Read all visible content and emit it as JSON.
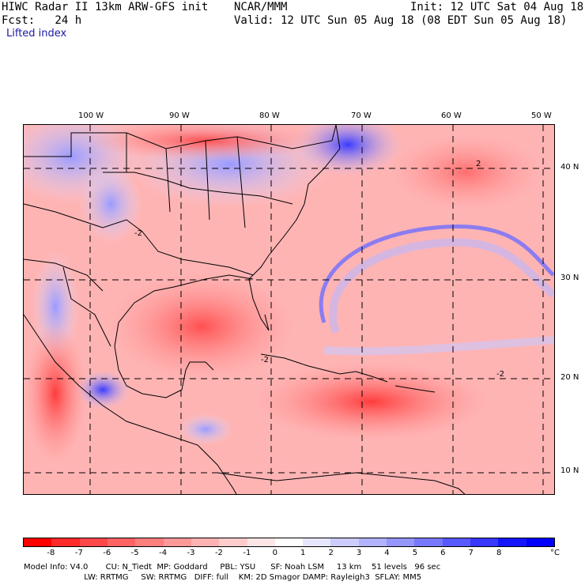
{
  "header": {
    "model_title": "HIWC Radar II 13km ARW-GFS init",
    "org": "NCAR/MMM",
    "init": "Init: 12 UTC Sat 04 Aug 18",
    "fcst": "Fcst:   24 h",
    "valid": "Valid: 12 UTC Sun 05 Aug 18 (08 EDT Sun 05 Aug 18)",
    "field": "Lifted index"
  },
  "map": {
    "lon_labels": [
      "100 W",
      "90 W",
      "80 W",
      "70 W",
      "60 W",
      "50 W"
    ],
    "lat_labels": [
      "40 N",
      "30 N",
      "20 N",
      "10 N"
    ],
    "contour_labels": [
      "2",
      "-2",
      "-2",
      "-2"
    ]
  },
  "colorbar": {
    "unit": "°C",
    "ticks": [
      "-8",
      "-7",
      "-6",
      "-5",
      "-4",
      "-3",
      "-2",
      "-1",
      "0",
      "1",
      "2",
      "3",
      "4",
      "5",
      "6",
      "7",
      "8"
    ],
    "colors": [
      "#ff0000",
      "#ff2a2a",
      "#ff4848",
      "#ff6464",
      "#ff7e7e",
      "#ff9898",
      "#ffb2b2",
      "#ffcccc",
      "#ffe6e6",
      "#ffffff",
      "#e6e6ff",
      "#ccccff",
      "#b2b2ff",
      "#9696ff",
      "#7878ff",
      "#5858ff",
      "#3838ff",
      "#1414ff",
      "#0000ff"
    ]
  },
  "footer": {
    "line1": "Model Info: V4.0       CU: N_Tiedt  MP: Goddard     PBL: YSU      SF: Noah LSM     13 km    51 levels   96 sec",
    "line2": "                        LW: RRTMG     SW: RRTMG   DIFF: full    KM: 2D Smagor DAMP: Rayleigh3  SFLAY: MM5"
  }
}
